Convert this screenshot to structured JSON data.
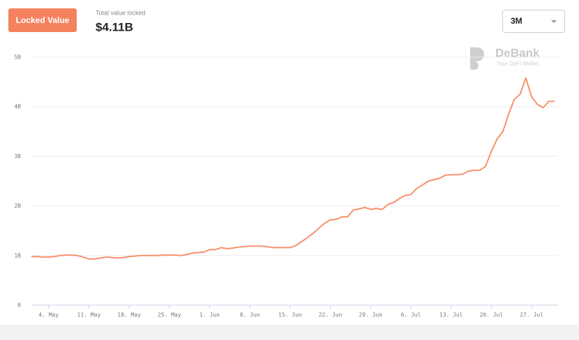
{
  "header": {
    "button": "Locked Value",
    "stat_label": "Total value locked",
    "stat_value": "$4.11B",
    "range": "3M"
  },
  "watermark": {
    "brand": "DeBank",
    "tagline": "Your DeFi Wallet"
  },
  "chart_data": {
    "type": "line",
    "color": "#f8906e",
    "grid": true,
    "categories": [
      null,
      null,
      null,
      "4. May",
      null,
      null,
      null,
      null,
      null,
      null,
      "11. May",
      null,
      null,
      null,
      null,
      null,
      null,
      "18. May",
      null,
      null,
      null,
      null,
      null,
      null,
      "25. May",
      null,
      null,
      null,
      null,
      null,
      null,
      "1. Jun",
      null,
      null,
      null,
      null,
      null,
      null,
      "8. Jun",
      null,
      null,
      null,
      null,
      null,
      null,
      "15. Jun",
      null,
      null,
      null,
      null,
      null,
      null,
      "22. Jun",
      null,
      null,
      null,
      null,
      null,
      null,
      "29. Jun",
      null,
      null,
      null,
      null,
      null,
      null,
      "6. Jul",
      null,
      null,
      null,
      null,
      null,
      null,
      "13. Jul",
      null,
      null,
      null,
      null,
      null,
      null,
      "20. Jul",
      null,
      null,
      null,
      null,
      null,
      null,
      "27. Jul",
      null,
      null,
      null,
      null
    ],
    "values": [
      0.98,
      0.98,
      0.97,
      0.97,
      0.98,
      1.0,
      1.01,
      1.01,
      1.0,
      0.97,
      0.93,
      0.93,
      0.95,
      0.97,
      0.96,
      0.95,
      0.96,
      0.98,
      0.99,
      1.0,
      1.0,
      1.0,
      1.0,
      1.01,
      1.01,
      1.01,
      1.0,
      1.02,
      1.05,
      1.06,
      1.07,
      1.12,
      1.12,
      1.16,
      1.14,
      1.15,
      1.17,
      1.18,
      1.19,
      1.19,
      1.19,
      1.18,
      1.16,
      1.16,
      1.16,
      1.16,
      1.2,
      1.28,
      1.36,
      1.45,
      1.55,
      1.65,
      1.72,
      1.73,
      1.78,
      1.78,
      1.92,
      1.94,
      1.97,
      1.93,
      1.95,
      1.93,
      2.03,
      2.07,
      2.15,
      2.21,
      2.23,
      2.35,
      2.42,
      2.5,
      2.53,
      2.56,
      2.62,
      2.63,
      2.63,
      2.64,
      2.7,
      2.72,
      2.72,
      2.8,
      3.1,
      3.35,
      3.5,
      3.85,
      4.15,
      4.25,
      4.58,
      4.2,
      4.05,
      3.98,
      4.11,
      4.11
    ],
    "ylim": [
      0,
      5
    ],
    "yticks": [
      0,
      {
        "value": 1,
        "label": "1B"
      },
      {
        "value": 2,
        "label": "2B"
      },
      {
        "value": 3,
        "label": "3B"
      },
      {
        "value": 4,
        "label": "4B"
      },
      {
        "value": 5,
        "label": "5B"
      }
    ]
  }
}
